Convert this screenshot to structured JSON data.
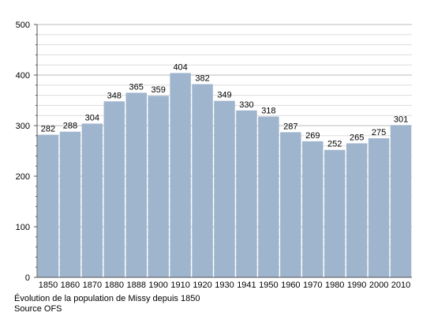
{
  "chart_data": {
    "type": "bar",
    "categories": [
      "1850",
      "1860",
      "1870",
      "1880",
      "1888",
      "1900",
      "1910",
      "1920",
      "1930",
      "1941",
      "1950",
      "1960",
      "1970",
      "1980",
      "1990",
      "2000",
      "2010"
    ],
    "values": [
      282,
      288,
      304,
      348,
      365,
      359,
      404,
      382,
      349,
      330,
      318,
      287,
      269,
      252,
      265,
      275,
      301
    ],
    "ylim": [
      0,
      500
    ],
    "yticks": [
      0,
      100,
      200,
      300,
      400,
      500
    ],
    "ytick_labels": [
      "0",
      "100",
      "200",
      "300",
      "400",
      "500"
    ],
    "grid": true,
    "bar_color": "#9fb4cd",
    "grid_color": "#bbbbbb"
  },
  "caption": {
    "line1": "Évolution de la population de Missy depuis 1850",
    "line2": "Source OFS"
  }
}
